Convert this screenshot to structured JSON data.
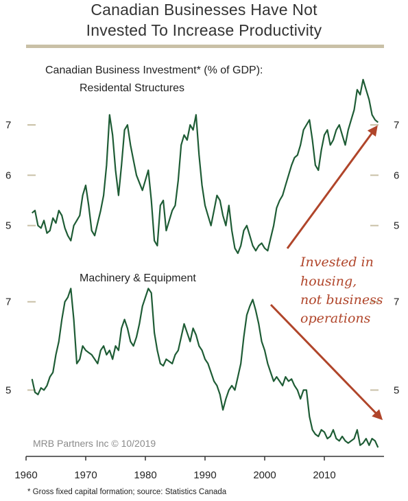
{
  "title_line1": "Canadian Businesses Have Not",
  "title_line2": "Invested To Increase Productivity",
  "colors": {
    "series": "#1e5c35",
    "arrow": "#b0452a",
    "rule": "#c9c0a6",
    "tickmark": "#c9c0a6"
  },
  "source": "MRB Partners Inc © 10/2019",
  "footnote": "* Gross fixed capital formation; source: Statistics Canada",
  "annotation": [
    "Invested in",
    "housing,",
    "not business",
    "operations"
  ],
  "chart_data": [
    {
      "type": "line",
      "title": "Canadian Business Investment* (% of GDP):",
      "subtitle": "Residental Structures",
      "ylabel": "",
      "xlabel": "",
      "yticks": [
        5,
        6,
        7
      ],
      "ylim": [
        4.3,
        7.9
      ],
      "xlim": [
        1960,
        2020
      ],
      "series": [
        {
          "name": "",
          "x": [
            1961.0,
            1961.5,
            1962.0,
            1962.5,
            1963.0,
            1963.5,
            1964.0,
            1964.5,
            1965.0,
            1965.5,
            1966.0,
            1966.5,
            1967.0,
            1967.5,
            1968.0,
            1968.5,
            1969.0,
            1969.5,
            1970.0,
            1970.5,
            1971.0,
            1971.5,
            1972.0,
            1972.5,
            1973.0,
            1973.5,
            1974.0,
            1974.5,
            1975.0,
            1975.5,
            1976.0,
            1976.5,
            1977.0,
            1977.5,
            1978.0,
            1978.5,
            1979.0,
            1979.5,
            1980.0,
            1980.5,
            1981.0,
            1981.5,
            1982.0,
            1982.5,
            1983.0,
            1983.5,
            1984.0,
            1984.5,
            1985.0,
            1985.5,
            1986.0,
            1986.5,
            1987.0,
            1987.5,
            1988.0,
            1988.5,
            1989.0,
            1989.5,
            1990.0,
            1990.5,
            1991.0,
            1991.5,
            1992.0,
            1992.5,
            1993.0,
            1993.5,
            1994.0,
            1994.5,
            1995.0,
            1995.5,
            1996.0,
            1996.5,
            1997.0,
            1997.5,
            1998.0,
            1998.5,
            1999.0,
            1999.5,
            2000.0,
            2000.5,
            2001.0,
            2001.5,
            2002.0,
            2002.5,
            2003.0,
            2003.5,
            2004.0,
            2004.5,
            2005.0,
            2005.5,
            2006.0,
            2006.5,
            2007.0,
            2007.5,
            2008.0,
            2008.5,
            2009.0,
            2009.5,
            2010.0,
            2010.5,
            2011.0,
            2011.5,
            2012.0,
            2012.5,
            2013.0,
            2013.5,
            2014.0,
            2014.5,
            2015.0,
            2015.5,
            2016.0,
            2016.5,
            2017.0,
            2017.5,
            2018.0,
            2018.5,
            2019.0
          ],
          "values": [
            5.25,
            5.3,
            5.0,
            4.95,
            5.1,
            4.85,
            4.9,
            5.15,
            5.05,
            5.3,
            5.2,
            4.95,
            4.8,
            4.7,
            5.0,
            5.1,
            5.2,
            5.6,
            5.8,
            5.4,
            4.9,
            4.8,
            5.05,
            5.3,
            5.6,
            6.2,
            7.2,
            6.8,
            6.1,
            5.6,
            6.2,
            6.9,
            7.0,
            6.6,
            6.3,
            6.0,
            5.85,
            5.7,
            5.9,
            6.1,
            5.5,
            4.7,
            4.6,
            5.4,
            5.5,
            4.9,
            5.1,
            5.3,
            5.4,
            5.9,
            6.6,
            6.8,
            6.7,
            7.0,
            6.9,
            7.2,
            6.4,
            5.8,
            5.4,
            5.2,
            5.0,
            5.3,
            5.6,
            5.5,
            5.2,
            5.0,
            5.4,
            4.9,
            4.55,
            4.45,
            4.6,
            4.9,
            5.0,
            4.8,
            4.6,
            4.5,
            4.6,
            4.65,
            4.55,
            4.5,
            4.75,
            5.0,
            5.35,
            5.5,
            5.6,
            5.8,
            6.0,
            6.2,
            6.35,
            6.4,
            6.6,
            6.9,
            7.0,
            7.1,
            6.7,
            6.2,
            6.1,
            6.5,
            6.8,
            6.9,
            6.6,
            6.7,
            6.9,
            7.0,
            6.8,
            6.6,
            6.9,
            7.1,
            7.3,
            7.7,
            7.6,
            7.9,
            7.7,
            7.5,
            7.2,
            7.1,
            7.05
          ]
        }
      ]
    },
    {
      "type": "line",
      "title": "Machinery & Equipment",
      "subtitle": "",
      "ylabel": "",
      "xlabel": "",
      "yticks": [
        5,
        7
      ],
      "ylim": [
        3.7,
        7.4
      ],
      "xticks": [
        1960,
        1970,
        1980,
        1990,
        2000,
        2010
      ],
      "xlim": [
        1960,
        2020
      ],
      "series": [
        {
          "name": "",
          "x": [
            1961.0,
            1961.5,
            1962.0,
            1962.5,
            1963.0,
            1963.5,
            1964.0,
            1964.5,
            1965.0,
            1965.5,
            1966.0,
            1966.5,
            1967.0,
            1967.5,
            1968.0,
            1968.5,
            1969.0,
            1969.5,
            1970.0,
            1970.5,
            1971.0,
            1971.5,
            1972.0,
            1972.5,
            1973.0,
            1973.5,
            1974.0,
            1974.5,
            1975.0,
            1975.5,
            1976.0,
            1976.5,
            1977.0,
            1977.5,
            1978.0,
            1978.5,
            1979.0,
            1979.5,
            1980.0,
            1980.5,
            1981.0,
            1981.5,
            1982.0,
            1982.5,
            1983.0,
            1983.5,
            1984.0,
            1984.5,
            1985.0,
            1985.5,
            1986.0,
            1986.5,
            1987.0,
            1987.5,
            1988.0,
            1988.5,
            1989.0,
            1989.5,
            1990.0,
            1990.5,
            1991.0,
            1991.5,
            1992.0,
            1992.5,
            1993.0,
            1993.5,
            1994.0,
            1994.5,
            1995.0,
            1995.5,
            1996.0,
            1996.5,
            1997.0,
            1997.5,
            1998.0,
            1998.5,
            1999.0,
            1999.5,
            2000.0,
            2000.5,
            2001.0,
            2001.5,
            2002.0,
            2002.5,
            2003.0,
            2003.5,
            2004.0,
            2004.5,
            2005.0,
            2005.5,
            2006.0,
            2006.5,
            2007.0,
            2007.5,
            2008.0,
            2008.5,
            2009.0,
            2009.5,
            2010.0,
            2010.5,
            2011.0,
            2011.5,
            2012.0,
            2012.5,
            2013.0,
            2013.5,
            2014.0,
            2014.5,
            2015.0,
            2015.5,
            2016.0,
            2016.5,
            2017.0,
            2017.5,
            2018.0,
            2018.5,
            2019.0
          ],
          "values": [
            5.25,
            4.95,
            4.9,
            5.05,
            5.0,
            5.1,
            5.3,
            5.4,
            5.8,
            6.1,
            6.6,
            7.0,
            7.1,
            7.3,
            6.6,
            5.6,
            5.7,
            6.0,
            5.9,
            5.85,
            5.8,
            5.7,
            5.6,
            5.9,
            6.0,
            5.8,
            5.9,
            5.7,
            6.0,
            5.9,
            6.4,
            6.6,
            6.4,
            6.1,
            6.0,
            6.2,
            6.5,
            6.9,
            7.1,
            7.3,
            7.2,
            6.3,
            5.9,
            5.6,
            5.55,
            5.7,
            5.65,
            5.6,
            5.8,
            5.9,
            6.2,
            6.5,
            6.3,
            6.1,
            6.4,
            6.25,
            6.0,
            5.9,
            5.7,
            5.6,
            5.4,
            5.2,
            5.1,
            4.9,
            4.55,
            4.8,
            5.0,
            5.1,
            5.0,
            5.3,
            5.6,
            6.2,
            6.7,
            6.9,
            7.05,
            6.8,
            6.5,
            6.1,
            5.9,
            5.6,
            5.4,
            5.2,
            5.3,
            5.2,
            5.1,
            5.3,
            5.2,
            5.25,
            5.1,
            5.0,
            4.8,
            5.0,
            5.0,
            4.4,
            4.1,
            4.0,
            3.95,
            4.1,
            4.05,
            3.9,
            3.95,
            4.1,
            3.9,
            3.85,
            3.95,
            3.85,
            3.8,
            3.85,
            3.9,
            4.1,
            3.75,
            3.8,
            3.9,
            3.75,
            3.9,
            3.85,
            3.7
          ]
        }
      ]
    }
  ]
}
